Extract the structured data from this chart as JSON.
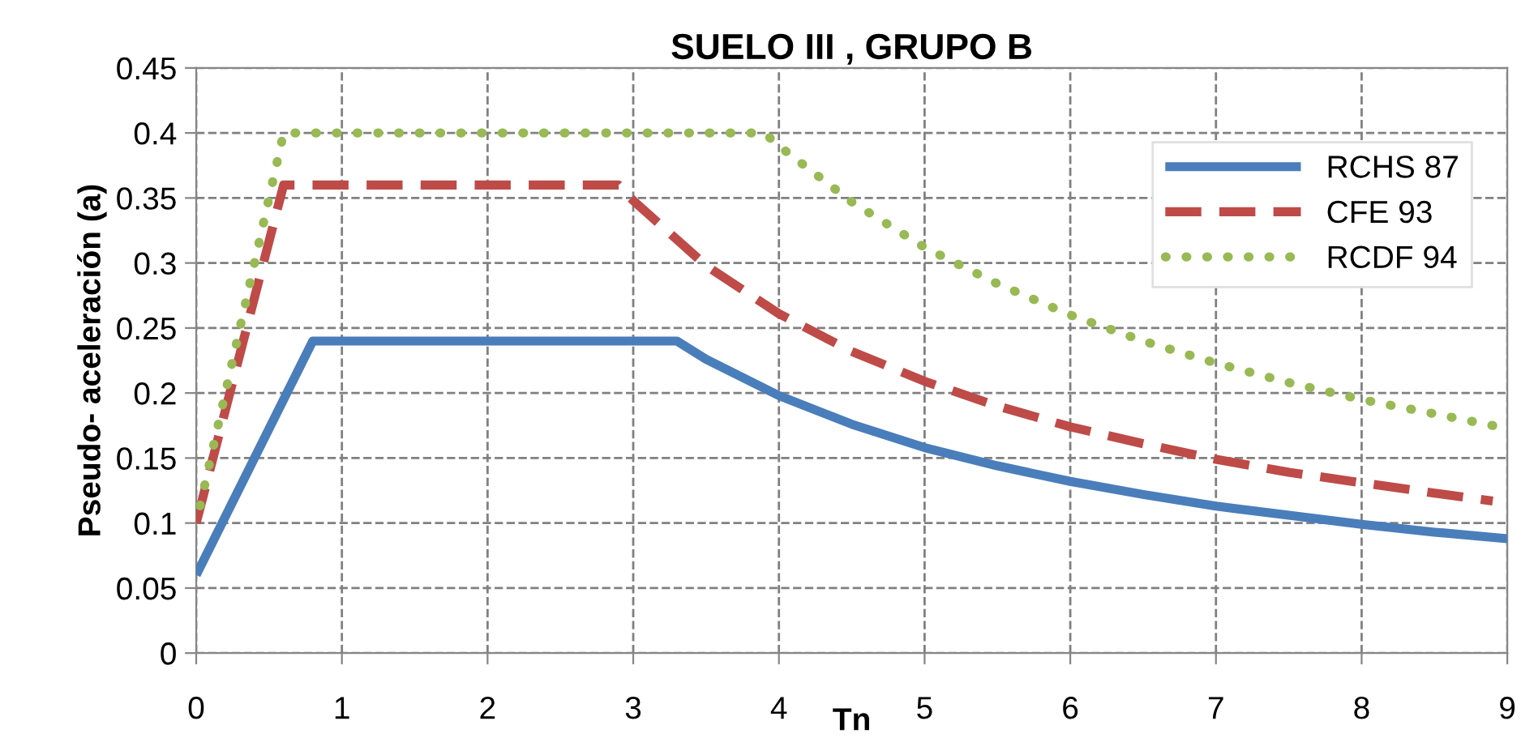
{
  "chart_data": {
    "type": "line",
    "title": "SUELO III , GRUPO B",
    "xlabel": "Tn",
    "ylabel": "Pseudo- aceleración (a)",
    "xlim": [
      0,
      9
    ],
    "xticks": [
      0,
      1,
      2,
      3,
      4,
      5,
      6,
      7,
      8,
      9
    ],
    "ylim": [
      0,
      0.45
    ],
    "yticks": [
      0,
      0.05,
      0.1,
      0.15,
      0.2,
      0.25,
      0.3,
      0.35,
      0.4,
      0.45
    ],
    "grid": true,
    "legend": "top right",
    "series": [
      {
        "name": "RCHS 87",
        "color": "#4a7ebb",
        "line_style": "solid",
        "x": [
          0,
          0.8,
          3.3,
          3.5,
          4,
          4.5,
          5,
          5.5,
          6,
          6.5,
          7,
          7.5,
          8,
          8.5,
          9
        ],
        "values": [
          0.06,
          0.24,
          0.24,
          0.226,
          0.198,
          0.176,
          0.158,
          0.144,
          0.132,
          0.122,
          0.113,
          0.106,
          0.099,
          0.093,
          0.088
        ]
      },
      {
        "name": "CFE 93",
        "color": "#be4b48",
        "line_style": "dashed",
        "x": [
          0,
          0.6,
          2.9,
          3,
          3.5,
          4,
          4.5,
          5,
          5.5,
          6,
          6.5,
          7,
          7.5,
          8,
          8.5,
          8.9
        ],
        "values": [
          0.1,
          0.36,
          0.36,
          0.348,
          0.298,
          0.261,
          0.232,
          0.209,
          0.19,
          0.174,
          0.161,
          0.149,
          0.139,
          0.131,
          0.123,
          0.117
        ]
      },
      {
        "name": "RCDF 94",
        "color": "#98b954",
        "line_style": "dotted",
        "x": [
          0,
          0.6,
          3.9,
          4,
          4.5,
          5,
          5.5,
          6,
          6.5,
          7,
          7.5,
          8,
          8.5,
          8.9
        ],
        "values": [
          0.1,
          0.4,
          0.4,
          0.39,
          0.347,
          0.312,
          0.284,
          0.26,
          0.24,
          0.223,
          0.208,
          0.195,
          0.184,
          0.175
        ]
      }
    ]
  }
}
